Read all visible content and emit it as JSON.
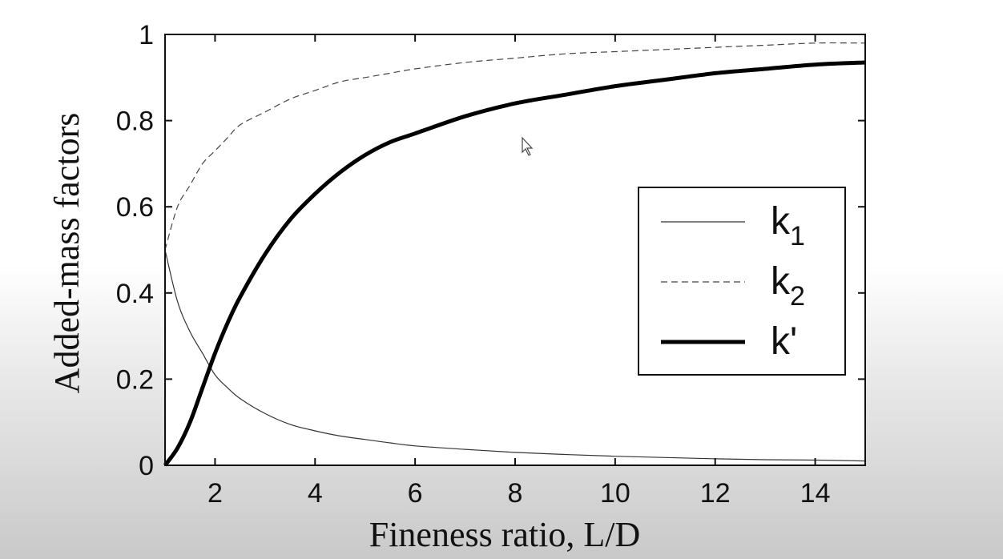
{
  "chart_data": {
    "type": "line",
    "xlabel": "Fineness ratio, L/D",
    "ylabel": "Added-mass factors",
    "xlim": [
      1,
      15
    ],
    "ylim": [
      0,
      1
    ],
    "xticks": [
      2,
      4,
      6,
      8,
      10,
      12,
      14
    ],
    "yticks": [
      0,
      0.2,
      0.4,
      0.6,
      0.8,
      1
    ],
    "ytick_labels": [
      "0",
      "0.2",
      "0.4",
      "0.6",
      "0.8",
      "1"
    ],
    "grid": false,
    "legend_position": "right",
    "x": [
      1,
      1.25,
      1.5,
      1.75,
      2,
      2.25,
      2.5,
      3,
      3.5,
      4,
      4.5,
      5,
      5.5,
      6,
      7,
      8,
      9,
      10,
      11,
      12,
      13,
      14,
      15
    ],
    "series": [
      {
        "name": "k1",
        "legend_main": "k",
        "legend_sub": "1",
        "style": "thin-solid",
        "values": [
          0.5,
          0.38,
          0.31,
          0.26,
          0.21,
          0.18,
          0.155,
          0.12,
          0.095,
          0.08,
          0.068,
          0.06,
          0.052,
          0.045,
          0.037,
          0.03,
          0.025,
          0.021,
          0.018,
          0.015,
          0.013,
          0.012,
          0.01
        ]
      },
      {
        "name": "k2",
        "legend_main": "k",
        "legend_sub": "2",
        "style": "dashed",
        "values": [
          0.5,
          0.6,
          0.65,
          0.7,
          0.73,
          0.76,
          0.79,
          0.82,
          0.85,
          0.87,
          0.89,
          0.9,
          0.91,
          0.92,
          0.935,
          0.945,
          0.955,
          0.96,
          0.965,
          0.97,
          0.975,
          0.98,
          0.98
        ]
      },
      {
        "name": "k'",
        "legend_main": "k'",
        "legend_sub": "",
        "style": "thick-solid",
        "values": [
          0,
          0.04,
          0.1,
          0.18,
          0.26,
          0.33,
          0.39,
          0.49,
          0.57,
          0.63,
          0.68,
          0.72,
          0.75,
          0.77,
          0.81,
          0.84,
          0.86,
          0.88,
          0.895,
          0.91,
          0.92,
          0.93,
          0.935
        ]
      }
    ]
  }
}
